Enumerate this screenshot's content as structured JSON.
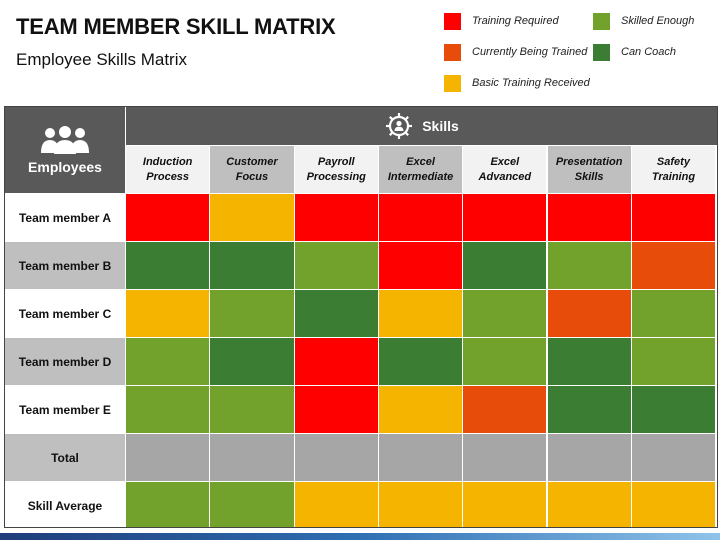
{
  "title": "TEAM MEMBER SKILL MATRIX",
  "subtitle": "Employee Skills Matrix",
  "legend": [
    {
      "key": "training_required",
      "label": "Training Required",
      "color": "#ff0000"
    },
    {
      "key": "currently_being_trained",
      "label": "Currently Being Trained",
      "color": "#e84c0b"
    },
    {
      "key": "basic_training_received",
      "label": "Basic Training Received",
      "color": "#f5b400"
    },
    {
      "key": "skilled_enough",
      "label": "Skilled Enough",
      "color": "#72a22c"
    },
    {
      "key": "can_coach",
      "label": "Can Coach",
      "color": "#3b7d33"
    }
  ],
  "matrix": {
    "employees_label": "Employees",
    "skills_label": "Skills",
    "header_color": "#595959",
    "skills": [
      "Induction\nProcess",
      "Customer\nFocus",
      "Payroll\nProcessing",
      "Excel\nIntermediate",
      "Excel\nAdvanced",
      "Presentation\nSkills",
      "Safety\nTraining"
    ],
    "skill_header_colors": [
      "#f2f2f2",
      "#bfbfbf",
      "#f2f2f2",
      "#bfbfbf",
      "#f2f2f2",
      "#bfbfbf",
      "#f2f2f2"
    ]
  },
  "chart_data": {
    "type": "heatmap",
    "title": "TEAM MEMBER SKILL MATRIX",
    "x": [
      "Induction Process",
      "Customer Focus",
      "Payroll Processing",
      "Excel Intermediate",
      "Excel Advanced",
      "Presentation Skills",
      "Safety Training"
    ],
    "rows": [
      {
        "label": "Team member A",
        "label_bg": "#ffffff",
        "values": [
          "training_required",
          "basic_training_received",
          "training_required",
          "training_required",
          "training_required",
          "training_required",
          "training_required"
        ]
      },
      {
        "label": "Team member B",
        "label_bg": "#bfbfbf",
        "values": [
          "can_coach",
          "can_coach",
          "skilled_enough",
          "training_required",
          "can_coach",
          "skilled_enough",
          "currently_being_trained"
        ]
      },
      {
        "label": "Team member C",
        "label_bg": "#ffffff",
        "values": [
          "basic_training_received",
          "skilled_enough",
          "can_coach",
          "basic_training_received",
          "skilled_enough",
          "currently_being_trained",
          "skilled_enough"
        ]
      },
      {
        "label": "Team member D",
        "label_bg": "#bfbfbf",
        "values": [
          "skilled_enough",
          "can_coach",
          "training_required",
          "can_coach",
          "skilled_enough",
          "can_coach",
          "skilled_enough"
        ]
      },
      {
        "label": "Team member E",
        "label_bg": "#ffffff",
        "values": [
          "skilled_enough",
          "skilled_enough",
          "training_required",
          "basic_training_received",
          "currently_being_trained",
          "can_coach",
          "can_coach"
        ]
      },
      {
        "label": "Total",
        "label_bg": "#bfbfbf",
        "values": [
          "empty",
          "empty",
          "empty",
          "empty",
          "empty",
          "empty",
          "empty"
        ]
      },
      {
        "label": "Skill Average",
        "label_bg": "#ffffff",
        "values": [
          "skilled_enough",
          "skilled_enough",
          "basic_training_received",
          "basic_training_received",
          "basic_training_received",
          "basic_training_received",
          "basic_training_received"
        ]
      }
    ],
    "empty_color": "#a6a6a6"
  }
}
